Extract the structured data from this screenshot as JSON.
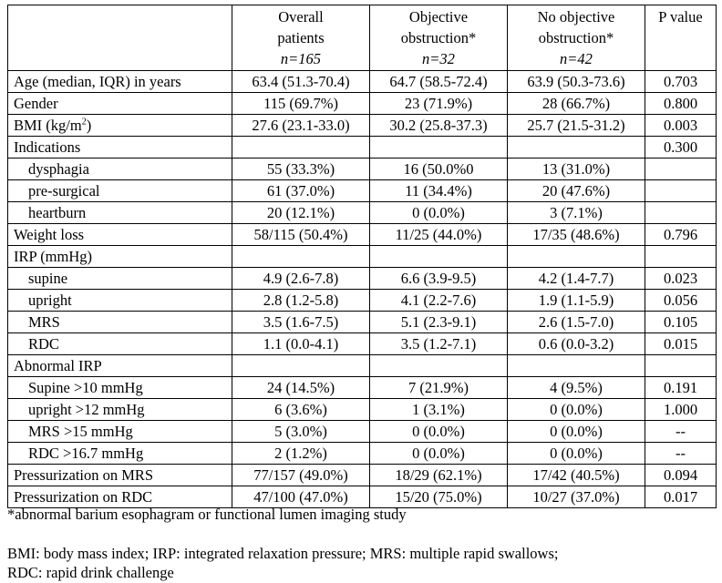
{
  "header": {
    "col1": "",
    "col2": [
      "Overall",
      "patients",
      "n=165"
    ],
    "col3": [
      "Objective",
      "obstruction*",
      "n=32"
    ],
    "col4": [
      "No objective",
      "obstruction*",
      "n=42"
    ],
    "col5": [
      "P value"
    ]
  },
  "rows": [
    {
      "label": "Age (median, IQR) in years",
      "overall": "63.4 (51.3-70.4)",
      "obj": "64.7 (58.5-72.4)",
      "noobj": "63.9 (50.3-73.6)",
      "p": "0.703"
    },
    {
      "label": "Gender",
      "overall": "115 (69.7%)",
      "obj": "23 (71.9%)",
      "noobj": "28 (66.7%)",
      "p": "0.800"
    },
    {
      "label": "BMI (kg/m",
      "sup": "2",
      "label_end": ")",
      "overall": "27.6 (23.1-33.0)",
      "obj": "30.2 (25.8-37.3)",
      "noobj": "25.7 (21.5-31.2)",
      "p": "0.003"
    },
    {
      "label": "Indications",
      "overall": "",
      "obj": "",
      "noobj": "",
      "p": "0.300"
    },
    {
      "label": "dysphagia",
      "overall": "55 (33.3%)",
      "obj": "16 (50.0%0",
      "noobj": "13 (31.0%)",
      "p": ""
    },
    {
      "label": "pre-surgical",
      "overall": "61 (37.0%)",
      "obj": "11 (34.4%)",
      "noobj": "20 (47.6%)",
      "p": ""
    },
    {
      "label": "heartburn",
      "overall": "20 (12.1%)",
      "obj": "0 (0.0%)",
      "noobj": "3 (7.1%)",
      "p": ""
    },
    {
      "label": "Weight loss",
      "overall": "58/115 (50.4%)",
      "obj": "11/25 (44.0%)",
      "noobj": "17/35 (48.6%)",
      "p": "0.796"
    },
    {
      "label": "IRP (mmHg)",
      "overall": "",
      "obj": "",
      "noobj": "",
      "p": ""
    },
    {
      "label": "supine",
      "overall": "4.9 (2.6-7.8)",
      "obj": "6.6 (3.9-9.5)",
      "noobj": "4.2 (1.4-7.7)",
      "p": "0.023"
    },
    {
      "label": "upright",
      "overall": "2.8 (1.2-5.8)",
      "obj": "4.1 (2.2-7.6)",
      "noobj": "1.9 (1.1-5.9)",
      "p": "0.056"
    },
    {
      "label": "MRS",
      "overall": "3.5 (1.6-7.5)",
      "obj": "5.1 (2.3-9.1)",
      "noobj": "2.6 (1.5-7.0)",
      "p": "0.105"
    },
    {
      "label": "RDC",
      "overall": "1.1 (0.0-4.1)",
      "obj": "3.5 (1.2-7.1)",
      "noobj": "0.6 (0.0-3.2)",
      "p": "0.015"
    },
    {
      "label": "Abnormal IRP",
      "overall": "",
      "obj": "",
      "noobj": "",
      "p": ""
    },
    {
      "label": "Supine >10 mmHg",
      "overall": "24 (14.5%)",
      "obj": "7 (21.9%)",
      "noobj": "4 (9.5%)",
      "p": "0.191"
    },
    {
      "label": "upright >12 mmHg",
      "overall": "6 (3.6%)",
      "obj": "1 (3.1%)",
      "noobj": "0 (0.0%)",
      "p": "1.000"
    },
    {
      "label": "MRS >15 mmHg",
      "overall": "5 (3.0%)",
      "obj": "0 (0.0%)",
      "noobj": "0 (0.0%)",
      "p": "--"
    },
    {
      "label": "RDC >16.7 mmHg",
      "overall": "2 (1.2%)",
      "obj": "0 (0.0%)",
      "noobj": "0 (0.0%)",
      "p": "--"
    },
    {
      "label": "Pressurization on MRS",
      "overall": "77/157 (49.0%)",
      "obj": "18/29 (62.1%)",
      "noobj": "17/42 (40.5%)",
      "p": "0.094"
    },
    {
      "label": "Pressurization on RDC",
      "overall": "47/100 (47.0%)",
      "obj": "15/20 (75.0%)",
      "noobj": "10/27 (37.0%)",
      "p": "0.017"
    }
  ],
  "footnote": "*abnormal barium esophagram or functional lumen imaging study",
  "abbreviations": [
    "BMI: body mass index; IRP: integrated relaxation pressure; MRS: multiple rapid swallows;",
    "RDC: rapid drink challenge"
  ]
}
